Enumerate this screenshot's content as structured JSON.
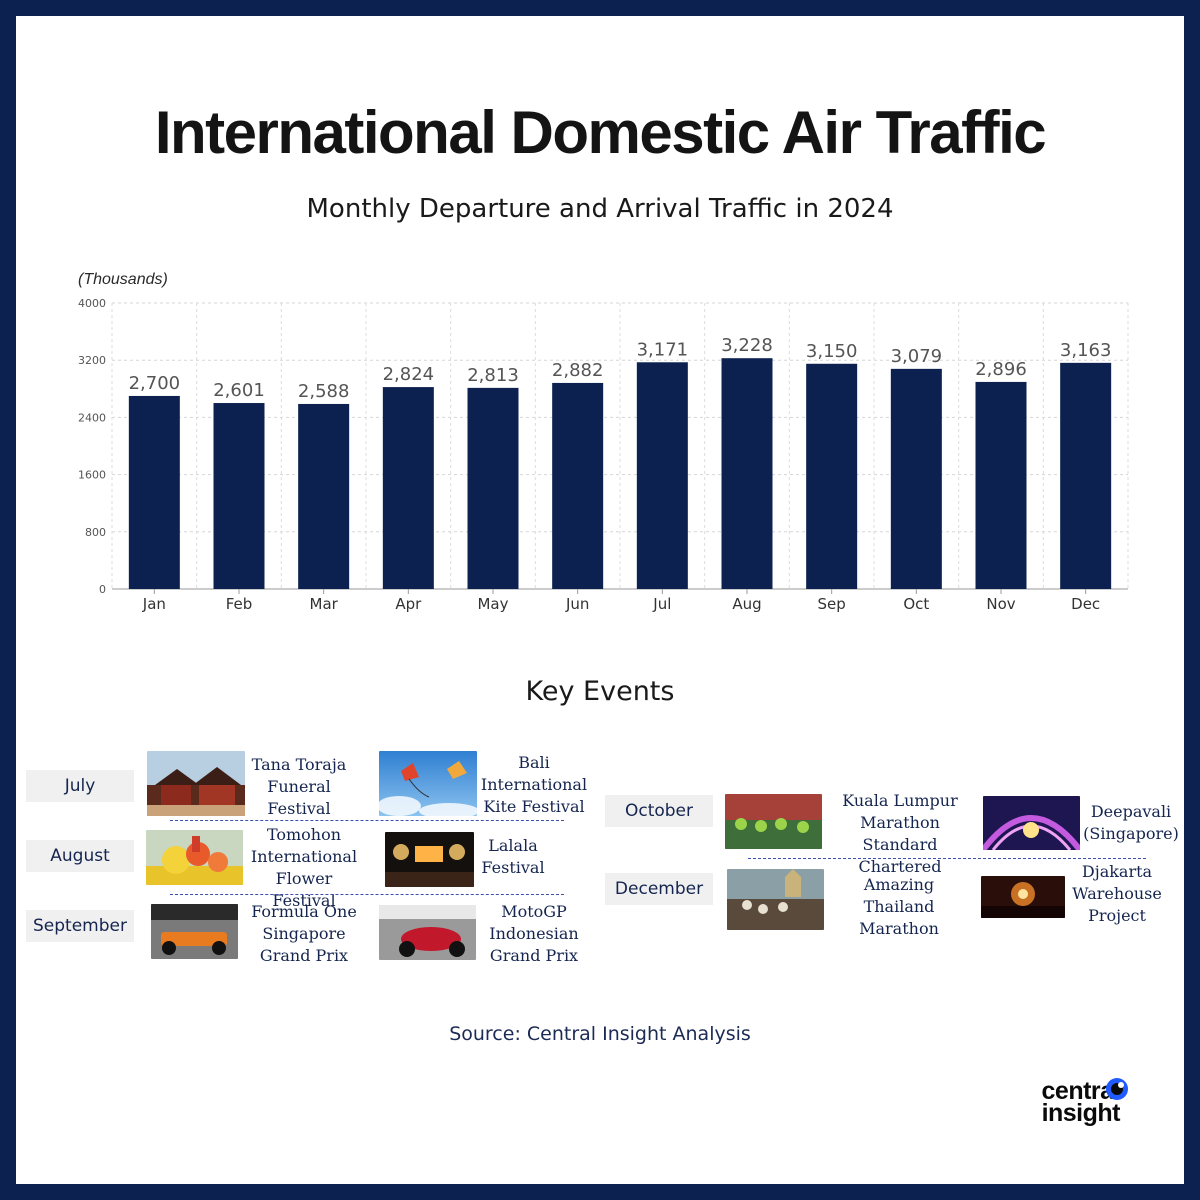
{
  "header": {
    "title": "International Domestic Air Traffic",
    "subtitle": "Monthly Departure and Arrival Traffic in 2024"
  },
  "chart_data": {
    "type": "bar",
    "unit_label": "(Thousands)",
    "categories": [
      "Jan",
      "Feb",
      "Mar",
      "Apr",
      "May",
      "Jun",
      "Jul",
      "Aug",
      "Sep",
      "Oct",
      "Nov",
      "Dec"
    ],
    "values": [
      2700,
      2601,
      2588,
      2824,
      2813,
      2882,
      3171,
      3228,
      3150,
      3079,
      2896,
      3163
    ],
    "value_labels": [
      "2,700",
      "2,601",
      "2,588",
      "2,824",
      "2,813",
      "2,882",
      "3,171",
      "3,228",
      "3,150",
      "3,079",
      "2,896",
      "3,163"
    ],
    "ylim": [
      0,
      4000
    ],
    "yticks": [
      0,
      800,
      1600,
      2400,
      3200,
      4000
    ],
    "grid": true,
    "bar_color": "#0c2150"
  },
  "key_events": {
    "title": "Key Events",
    "months": {
      "july": "July",
      "august": "August",
      "september": "September",
      "october": "October",
      "december": "December"
    },
    "events": {
      "tana_toraja": "Tana Toraja\nFuneral\nFestival",
      "bali_kite": "Bali\nInternational\nKite Festival",
      "tomohon": "Tomohon\nInternational\nFlower Festival",
      "lalala": "Lalala\nFestival",
      "formula_one": "Formula One\nSingapore\nGrand Prix",
      "motogp": "MotoGP\nIndonesian\nGrand Prix",
      "kl_marathon": "Kuala Lumpur\nMarathon Standard\nChartered",
      "deepavali": "Deepavali\n(Singapore)",
      "amazing_thailand": "Amazing Thailand\nMarathon",
      "djakarta": "Djakarta\nWarehouse\nProject"
    }
  },
  "footer": {
    "source": "Source: Central Insight Analysis",
    "logo_line1": "central",
    "logo_line2": "insight"
  }
}
